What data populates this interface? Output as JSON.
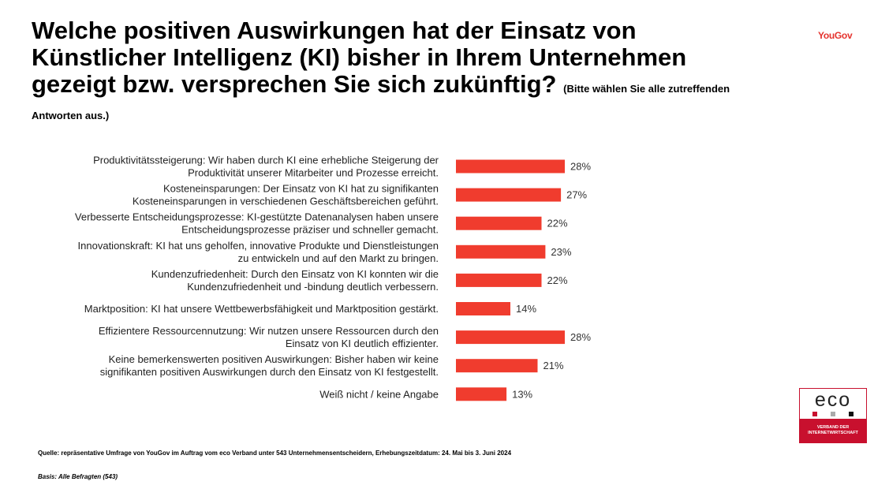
{
  "title": {
    "main": "Welche positiven Auswirkungen hat der Einsatz von Künstlicher Intelligenz (KI) bisher in Ihrem Unternehmen gezeigt bzw. versprechen Sie sich zukünftig?",
    "instruction": "(Bitte wählen Sie alle zutreffenden Antworten aus.)"
  },
  "brand": "YouGov",
  "footer": {
    "source": "Quelle: repräsentative Umfrage von YouGov im Auftrag vom eco Verband unter 543 Unternehmensentscheidern, Erhebungszeitdatum: 24. Mai bis 3. Juni 2024",
    "basis": "Basis: Alle Befragten (543)"
  },
  "logo": {
    "word": "eco",
    "tagline_1": "VERBAND DER",
    "tagline_2": "INTERNETWIRTSCHAFT"
  },
  "colors": {
    "bar": "#f03c2e",
    "brand": "#e5322d",
    "logo_red": "#c8102e"
  },
  "chart_data": {
    "type": "bar",
    "orientation": "horizontal",
    "categories": [
      [
        "Produktivitätssteigerung: Wir haben durch KI eine erhebliche Steigerung der",
        "Produktivität unserer Mitarbeiter und Prozesse erreicht."
      ],
      [
        "Kosteneinsparungen: Der Einsatz von KI hat zu signifikanten",
        "Kosteneinsparungen in verschiedenen Geschäftsbereichen geführt."
      ],
      [
        "Verbesserte Entscheidungsprozesse: KI-gestützte Datenanalysen haben unsere",
        "Entscheidungsprozesse präziser und schneller gemacht."
      ],
      [
        "Innovationskraft: KI hat uns geholfen, innovative Produkte und Dienstleistungen",
        "zu entwickeln und auf den Markt zu bringen."
      ],
      [
        "Kundenzufriedenheit: Durch den Einsatz von KI konnten wir die",
        "Kundenzufriedenheit und -bindung deutlich verbessern."
      ],
      [
        "Marktposition: KI hat unsere Wettbewerbsfähigkeit und Marktposition gestärkt."
      ],
      [
        "Effizientere Ressourcennutzung: Wir nutzen unsere Ressourcen durch den",
        "Einsatz von KI deutlich effizienter."
      ],
      [
        "Keine bemerkenswerten positiven Auswirkungen: Bisher haben wir keine",
        "signifikanten positiven Auswirkungen durch den Einsatz von KI festgestellt."
      ],
      [
        "Weiß nicht / keine Angabe"
      ]
    ],
    "values": [
      28,
      27,
      22,
      23,
      22,
      14,
      28,
      21,
      13
    ],
    "value_labels": [
      "28%",
      "27%",
      "22%",
      "23%",
      "22%",
      "14%",
      "28%",
      "21%",
      "13%"
    ],
    "unit": "%",
    "xlim": [
      0,
      100
    ]
  }
}
